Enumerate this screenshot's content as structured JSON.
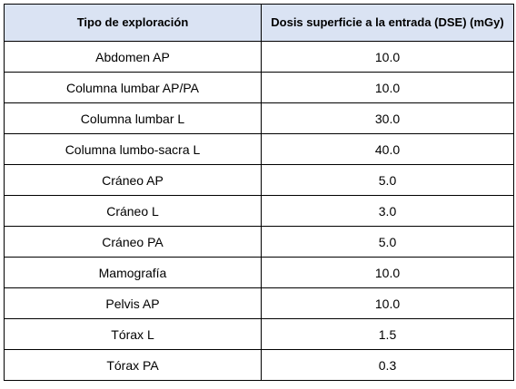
{
  "table": {
    "headers": [
      "Tipo de exploración",
      "Dosis superficie a la entrada (DSE) (mGy)"
    ],
    "header_bg": "#dae3f3",
    "rows": [
      [
        "Abdomen AP",
        "10.0"
      ],
      [
        "Columna lumbar AP/PA",
        "10.0"
      ],
      [
        "Columna lumbar L",
        "30.0"
      ],
      [
        "Columna lumbo-sacra L",
        "40.0"
      ],
      [
        "Cráneo AP",
        "5.0"
      ],
      [
        "Cráneo L",
        "3.0"
      ],
      [
        "Cráneo PA",
        "5.0"
      ],
      [
        "Mamografía",
        "10.0"
      ],
      [
        "Pelvis AP",
        "10.0"
      ],
      [
        "Tórax L",
        "1.5"
      ],
      [
        "Tórax PA",
        "0.3"
      ]
    ]
  }
}
